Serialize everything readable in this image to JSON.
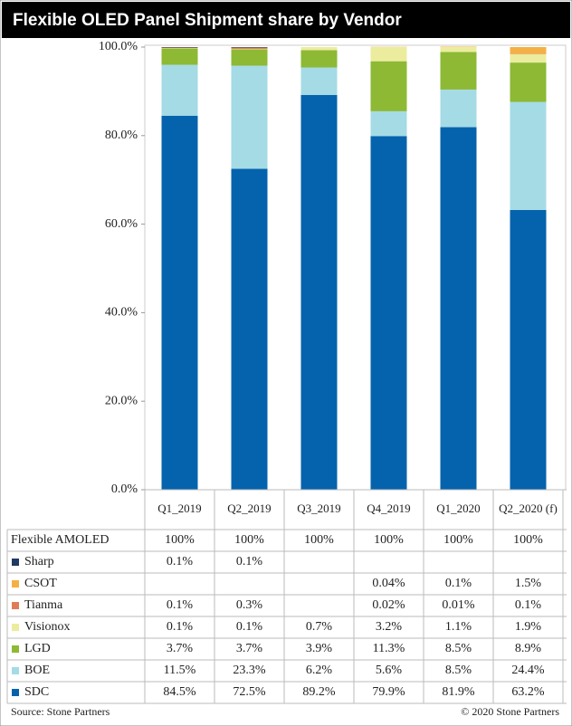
{
  "chart_data": {
    "type": "stacked_bar",
    "title": "Flexible OLED Panel Shipment share by Vendor",
    "categories": [
      "Q1_2019",
      "Q2_2019",
      "Q3_2019",
      "Q4_2019",
      "Q1_2020",
      "Q2_2020 (f)"
    ],
    "ylim": [
      0,
      100
    ],
    "yticks": [
      {
        "value": 0,
        "label": "0.0%"
      },
      {
        "value": 20,
        "label": "20.0%"
      },
      {
        "value": 40,
        "label": "40.0%"
      },
      {
        "value": 60,
        "label": "60.0%"
      },
      {
        "value": 80,
        "label": "80.0%"
      },
      {
        "value": 100,
        "label": "100.0%"
      }
    ],
    "grid": false,
    "total": {
      "name": "Flexible AMOLED",
      "values": [
        100,
        100,
        100,
        100,
        100,
        100
      ],
      "value_labels": [
        "100%",
        "100%",
        "100%",
        "100%",
        "100%",
        "100%"
      ]
    },
    "series": [
      {
        "name": "SDC",
        "color": "#0563ad",
        "values": [
          84.5,
          72.5,
          89.2,
          79.9,
          81.9,
          63.2
        ],
        "value_labels": [
          "84.5%",
          "72.5%",
          "89.2%",
          "79.9%",
          "81.9%",
          "63.2%"
        ]
      },
      {
        "name": "BOE",
        "color": "#a5dbe5",
        "values": [
          11.5,
          23.3,
          6.2,
          5.6,
          8.5,
          24.4
        ],
        "value_labels": [
          "11.5%",
          "23.3%",
          "6.2%",
          "5.6%",
          "8.5%",
          "24.4%"
        ]
      },
      {
        "name": "LGD",
        "color": "#8db935",
        "values": [
          3.7,
          3.7,
          3.9,
          11.3,
          8.5,
          8.9
        ],
        "value_labels": [
          "3.7%",
          "3.7%",
          "3.9%",
          "11.3%",
          "8.5%",
          "8.9%"
        ]
      },
      {
        "name": "Visionox",
        "color": "#ecec9e",
        "values": [
          0.1,
          0.1,
          0.7,
          3.2,
          1.1,
          1.9
        ],
        "value_labels": [
          "0.1%",
          "0.1%",
          "0.7%",
          "3.2%",
          "1.1%",
          "1.9%"
        ]
      },
      {
        "name": "Tianma",
        "color": "#e07c55",
        "values": [
          0.1,
          0.3,
          null,
          0.02,
          0.01,
          0.1
        ],
        "value_labels": [
          "0.1%",
          "0.3%",
          null,
          "0.02%",
          "0.01%",
          "0.1%"
        ]
      },
      {
        "name": "CSOT",
        "color": "#f4b044",
        "values": [
          null,
          null,
          null,
          0.04,
          0.1,
          1.5
        ],
        "value_labels": [
          null,
          null,
          null,
          "0.04%",
          "0.1%",
          "1.5%"
        ]
      },
      {
        "name": "Sharp",
        "color": "#1f3a63",
        "values": [
          0.1,
          0.1,
          null,
          null,
          null,
          null
        ],
        "value_labels": [
          "0.1%",
          "0.1%",
          null,
          null,
          null,
          null
        ]
      }
    ],
    "source": "Source: Stone Partners",
    "copyright": "© 2020 Stone Partners"
  }
}
